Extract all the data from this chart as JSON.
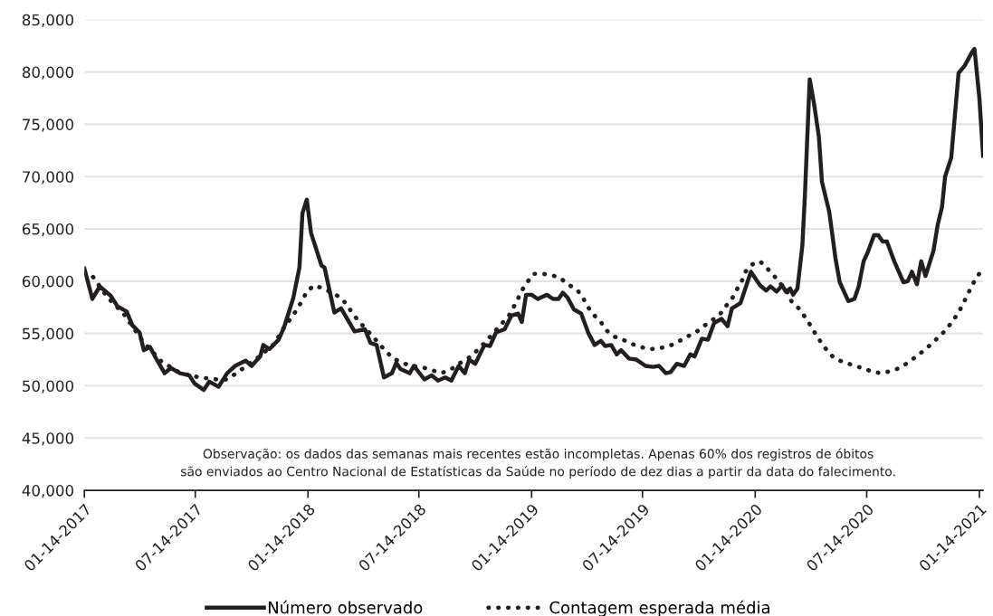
{
  "chart_data": {
    "type": "line",
    "xlim": [
      "2017-01-14",
      "2021-01-20"
    ],
    "ylim": [
      40000,
      85000
    ],
    "xticks": [
      {
        "value": "2017-01-14",
        "label": "01-14-2017"
      },
      {
        "value": "2017-07-14",
        "label": "07-14-2017"
      },
      {
        "value": "2018-01-14",
        "label": "01-14-2018"
      },
      {
        "value": "2018-07-14",
        "label": "07-14-2018"
      },
      {
        "value": "2019-01-14",
        "label": "01-14-2019"
      },
      {
        "value": "2019-07-14",
        "label": "07-14-2019"
      },
      {
        "value": "2020-01-14",
        "label": "01-14-2020"
      },
      {
        "value": "2020-07-14",
        "label": "07-14-2020"
      },
      {
        "value": "2021-01-14",
        "label": "01-14-2021"
      }
    ],
    "yticks": [
      {
        "value": 40000,
        "label": "40,000"
      },
      {
        "value": 45000,
        "label": "45,000"
      },
      {
        "value": 50000,
        "label": "50,000"
      },
      {
        "value": 55000,
        "label": "55,000"
      },
      {
        "value": 60000,
        "label": "60,000"
      },
      {
        "value": 65000,
        "label": "65,000"
      },
      {
        "value": 70000,
        "label": "70,000"
      },
      {
        "value": 75000,
        "label": "75,000"
      },
      {
        "value": 80000,
        "label": "80,000"
      },
      {
        "value": 85000,
        "label": "85,000"
      }
    ],
    "grid": "y",
    "legend": "bottom",
    "marker": "none",
    "annotations": [
      "Observação: os dados das semanas mais recentes estão incompletas. Apenas 60% dos registros de óbitos\nsão enviados ao Centro Nacional de Estatísticas da Saúde no período de dez dias a partir da data do falecimento."
    ],
    "series": [
      {
        "name": "Número observado",
        "color": "#231f20",
        "line_style": "solid",
        "x": [
          "2017-01-14",
          "2017-01-27",
          "2017-02-08",
          "2017-02-26",
          "2017-03-09",
          "2017-03-24",
          "2017-04-02",
          "2017-04-14",
          "2017-04-21",
          "2017-05-01",
          "2017-05-13",
          "2017-05-25",
          "2017-06-04",
          "2017-06-19",
          "2017-07-04",
          "2017-07-13",
          "2017-07-28",
          "2017-08-06",
          "2017-08-21",
          "2017-09-04",
          "2017-09-17",
          "2017-10-04",
          "2017-10-14",
          "2017-10-28",
          "2017-11-02",
          "2017-11-12",
          "2017-11-27",
          "2017-12-06",
          "2017-12-21",
          "2017-12-31",
          "2018-01-05",
          "2018-01-12",
          "2018-01-19",
          "2018-02-05",
          "2018-02-10",
          "2018-02-26",
          "2018-03-09",
          "2018-03-31",
          "2018-04-17",
          "2018-04-26",
          "2018-05-06",
          "2018-05-18",
          "2018-05-31",
          "2018-06-07",
          "2018-06-14",
          "2018-06-29",
          "2018-07-06",
          "2018-07-23",
          "2018-08-04",
          "2018-08-14",
          "2018-08-26",
          "2018-09-05",
          "2018-09-17",
          "2018-09-27",
          "2018-10-04",
          "2018-10-14",
          "2018-10-29",
          "2018-11-07",
          "2018-11-17",
          "2018-12-01",
          "2018-12-12",
          "2018-12-23",
          "2018-12-29",
          "2019-01-05",
          "2019-01-14",
          "2019-01-24",
          "2019-02-08",
          "2019-02-18",
          "2019-02-27",
          "2019-03-06",
          "2019-03-14",
          "2019-03-24",
          "2019-04-05",
          "2019-04-17",
          "2019-04-27",
          "2019-05-07",
          "2019-05-14",
          "2019-05-24",
          "2019-06-02",
          "2019-06-09",
          "2019-06-22",
          "2019-07-04",
          "2019-07-19",
          "2019-07-31",
          "2019-08-10",
          "2019-08-21",
          "2019-08-29",
          "2019-09-08",
          "2019-09-20",
          "2019-09-30",
          "2019-10-07",
          "2019-10-19",
          "2019-10-29",
          "2019-11-08",
          "2019-11-20",
          "2019-11-30",
          "2019-12-07",
          "2019-12-21",
          "2020-01-07",
          "2020-01-22",
          "2020-02-01",
          "2020-02-08",
          "2020-02-18",
          "2020-02-27",
          "2020-03-04",
          "2020-03-11",
          "2020-03-16",
          "2020-03-23",
          "2020-03-31",
          "2020-04-04",
          "2020-04-12",
          "2020-04-19",
          "2020-04-27",
          "2020-05-02",
          "2020-05-14",
          "2020-05-24",
          "2020-05-31",
          "2020-06-14",
          "2020-06-24",
          "2020-07-01",
          "2020-07-09",
          "2020-07-16",
          "2020-07-26",
          "2020-08-02",
          "2020-08-09",
          "2020-08-16",
          "2020-08-28",
          "2020-09-12",
          "2020-09-19",
          "2020-09-26",
          "2020-10-04",
          "2020-10-11",
          "2020-10-18",
          "2020-10-31",
          "2020-11-07",
          "2020-11-14",
          "2020-11-19",
          "2020-11-29",
          "2020-12-11",
          "2020-12-21",
          "2021-01-02",
          "2021-01-06",
          "2021-01-14",
          "2021-01-20"
        ],
        "values": [
          61200,
          58300,
          59500,
          58600,
          57600,
          57100,
          55800,
          55100,
          53400,
          53700,
          52400,
          51200,
          51700,
          51200,
          51000,
          50200,
          49600,
          50400,
          49900,
          51200,
          51900,
          52400,
          51900,
          52800,
          53900,
          53500,
          54400,
          55600,
          58400,
          61300,
          66500,
          67800,
          64600,
          61500,
          61300,
          57000,
          57400,
          55200,
          55400,
          54100,
          53900,
          50800,
          51200,
          52200,
          51600,
          51200,
          51900,
          50600,
          51000,
          50500,
          50800,
          50500,
          51900,
          51200,
          52500,
          52100,
          53900,
          53800,
          55100,
          55400,
          56700,
          56900,
          56100,
          58700,
          58700,
          58300,
          58700,
          58300,
          58300,
          58900,
          58400,
          57300,
          56900,
          55000,
          53900,
          54300,
          53800,
          53900,
          53000,
          53400,
          52600,
          52500,
          51900,
          51800,
          51900,
          51200,
          51300,
          52100,
          51900,
          53000,
          52800,
          54500,
          54400,
          56000,
          56400,
          55700,
          57400,
          57900,
          60900,
          59600,
          59100,
          59500,
          59000,
          59600,
          59000,
          59300,
          58700,
          59300,
          63400,
          68000,
          79300,
          77000,
          73800,
          69500,
          66600,
          62200,
          59900,
          58100,
          58300,
          59500,
          61900,
          62800,
          64400,
          64400,
          63800,
          63800,
          61900,
          59900,
          60000,
          60900,
          59700,
          61900,
          60500,
          62900,
          65400,
          67100,
          70000,
          71800,
          79900,
          80600,
          81900,
          82200,
          77500,
          72000
        ]
      },
      {
        "name": "Contagem esperada média",
        "color": "#231f20",
        "line_style": "dotted",
        "x": [
          "2017-01-14",
          "2017-01-27",
          "2017-02-20",
          "2017-03-20",
          "2017-04-20",
          "2017-05-20",
          "2017-06-20",
          "2017-07-21",
          "2017-08-20",
          "2017-09-04",
          "2017-09-19",
          "2017-10-20",
          "2017-11-20",
          "2017-12-08",
          "2017-12-18",
          "2017-12-28",
          "2018-01-05",
          "2018-01-12",
          "2018-01-24",
          "2018-02-08",
          "2018-02-22",
          "2018-03-09",
          "2018-03-19",
          "2018-03-29",
          "2018-04-08",
          "2018-04-30",
          "2018-05-21",
          "2018-06-02",
          "2018-06-17",
          "2018-07-01",
          "2018-07-18",
          "2018-08-04",
          "2018-08-19",
          "2018-09-03",
          "2018-09-17",
          "2018-10-02",
          "2018-10-14",
          "2018-10-31",
          "2018-11-24",
          "2018-12-07",
          "2018-12-21",
          "2018-12-29",
          "2019-01-07",
          "2019-01-17",
          "2019-02-01",
          "2019-02-15",
          "2019-03-02",
          "2019-03-14",
          "2019-03-29",
          "2019-04-08",
          "2019-04-15",
          "2019-04-25",
          "2019-05-07",
          "2019-05-16",
          "2019-05-29",
          "2019-06-12",
          "2019-06-27",
          "2019-07-11",
          "2019-07-27",
          "2019-08-12",
          "2019-08-27",
          "2019-09-10",
          "2019-09-25",
          "2019-10-09",
          "2019-10-22",
          "2019-11-03",
          "2019-11-17",
          "2019-11-27",
          "2019-12-07",
          "2019-12-15",
          "2019-12-23",
          "2019-12-29",
          "2020-01-09",
          "2020-01-22",
          "2020-02-03",
          "2020-02-14",
          "2020-02-25",
          "2020-03-06",
          "2020-03-13",
          "2020-03-25",
          "2020-04-04",
          "2020-04-13",
          "2020-04-21",
          "2020-04-30",
          "2020-05-10",
          "2020-05-21",
          "2020-06-04",
          "2020-06-20",
          "2020-07-06",
          "2020-07-21",
          "2020-08-06",
          "2020-08-22",
          "2020-09-06",
          "2020-09-19",
          "2020-10-03",
          "2020-10-16",
          "2020-10-28",
          "2020-11-09",
          "2020-11-20",
          "2020-11-30",
          "2020-12-10",
          "2020-12-18",
          "2020-12-25",
          "2021-01-01",
          "2021-01-09",
          "2021-01-18"
        ],
        "values": [
          60800,
          60500,
          58500,
          56800,
          54200,
          52300,
          51200,
          50800,
          50600,
          50600,
          51200,
          52500,
          54000,
          55800,
          56500,
          57400,
          58200,
          59000,
          59600,
          59300,
          58900,
          58400,
          57700,
          56800,
          56100,
          54700,
          53300,
          52600,
          52200,
          51900,
          51800,
          51500,
          51200,
          51500,
          52100,
          52600,
          53200,
          54200,
          55800,
          56600,
          58100,
          59100,
          59900,
          60700,
          60700,
          60600,
          60300,
          59700,
          59200,
          58400,
          57600,
          56800,
          56100,
          55300,
          54700,
          54400,
          54000,
          53700,
          53500,
          53600,
          53800,
          54200,
          54700,
          55100,
          55700,
          56200,
          56800,
          57600,
          58300,
          59200,
          60000,
          60900,
          61600,
          61900,
          61200,
          60500,
          59700,
          59000,
          58100,
          57400,
          56600,
          55800,
          55000,
          54200,
          53400,
          52700,
          52300,
          52000,
          51700,
          51400,
          51200,
          51400,
          51700,
          52200,
          52800,
          53400,
          54000,
          54700,
          55300,
          56100,
          56900,
          57800,
          58600,
          59500,
          60300,
          61100
        ]
      }
    ]
  }
}
